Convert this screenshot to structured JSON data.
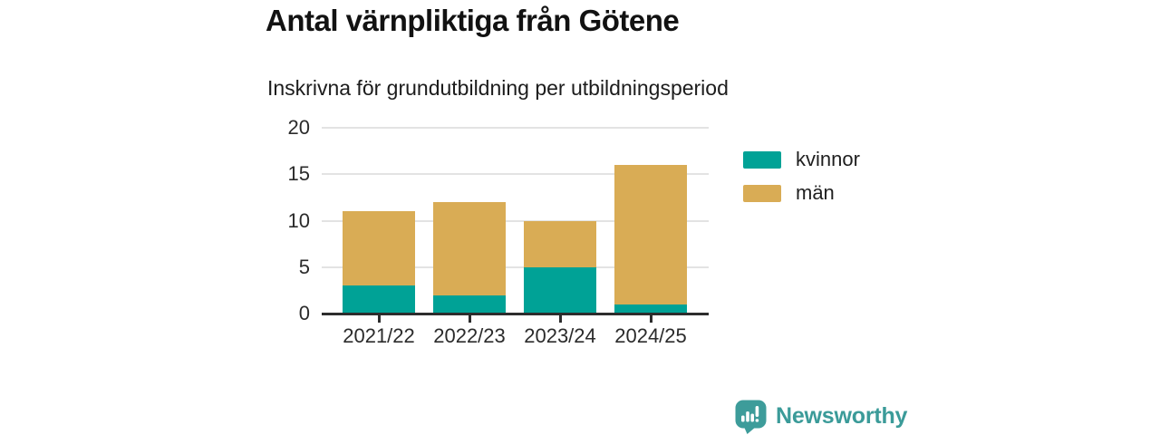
{
  "header": {
    "title": "Antal värnpliktiga från Götene",
    "subtitle": "Inskrivna för grundutbildning per utbildningsperiod"
  },
  "chart_data": {
    "type": "bar",
    "stacked": true,
    "title": "Antal värnpliktiga från Götene",
    "subtitle": "Inskrivna för grundutbildning per utbildningsperiod",
    "categories": [
      "2021/22",
      "2022/23",
      "2023/24",
      "2024/25"
    ],
    "series": [
      {
        "name": "kvinnor",
        "color": "#00a296",
        "values": [
          3,
          2,
          5,
          1
        ]
      },
      {
        "name": "män",
        "color": "#d9ac55",
        "values": [
          8,
          10,
          5,
          15
        ]
      }
    ],
    "totals": [
      11,
      12,
      10,
      16
    ],
    "xlabel": "",
    "ylabel": "",
    "ylim": [
      0,
      20
    ],
    "yticks": [
      0,
      5,
      10,
      15,
      20
    ],
    "grid": true,
    "legend_position": "right"
  },
  "footer": {
    "brand": "Newsworthy",
    "brand_color": "#3b9b99"
  }
}
